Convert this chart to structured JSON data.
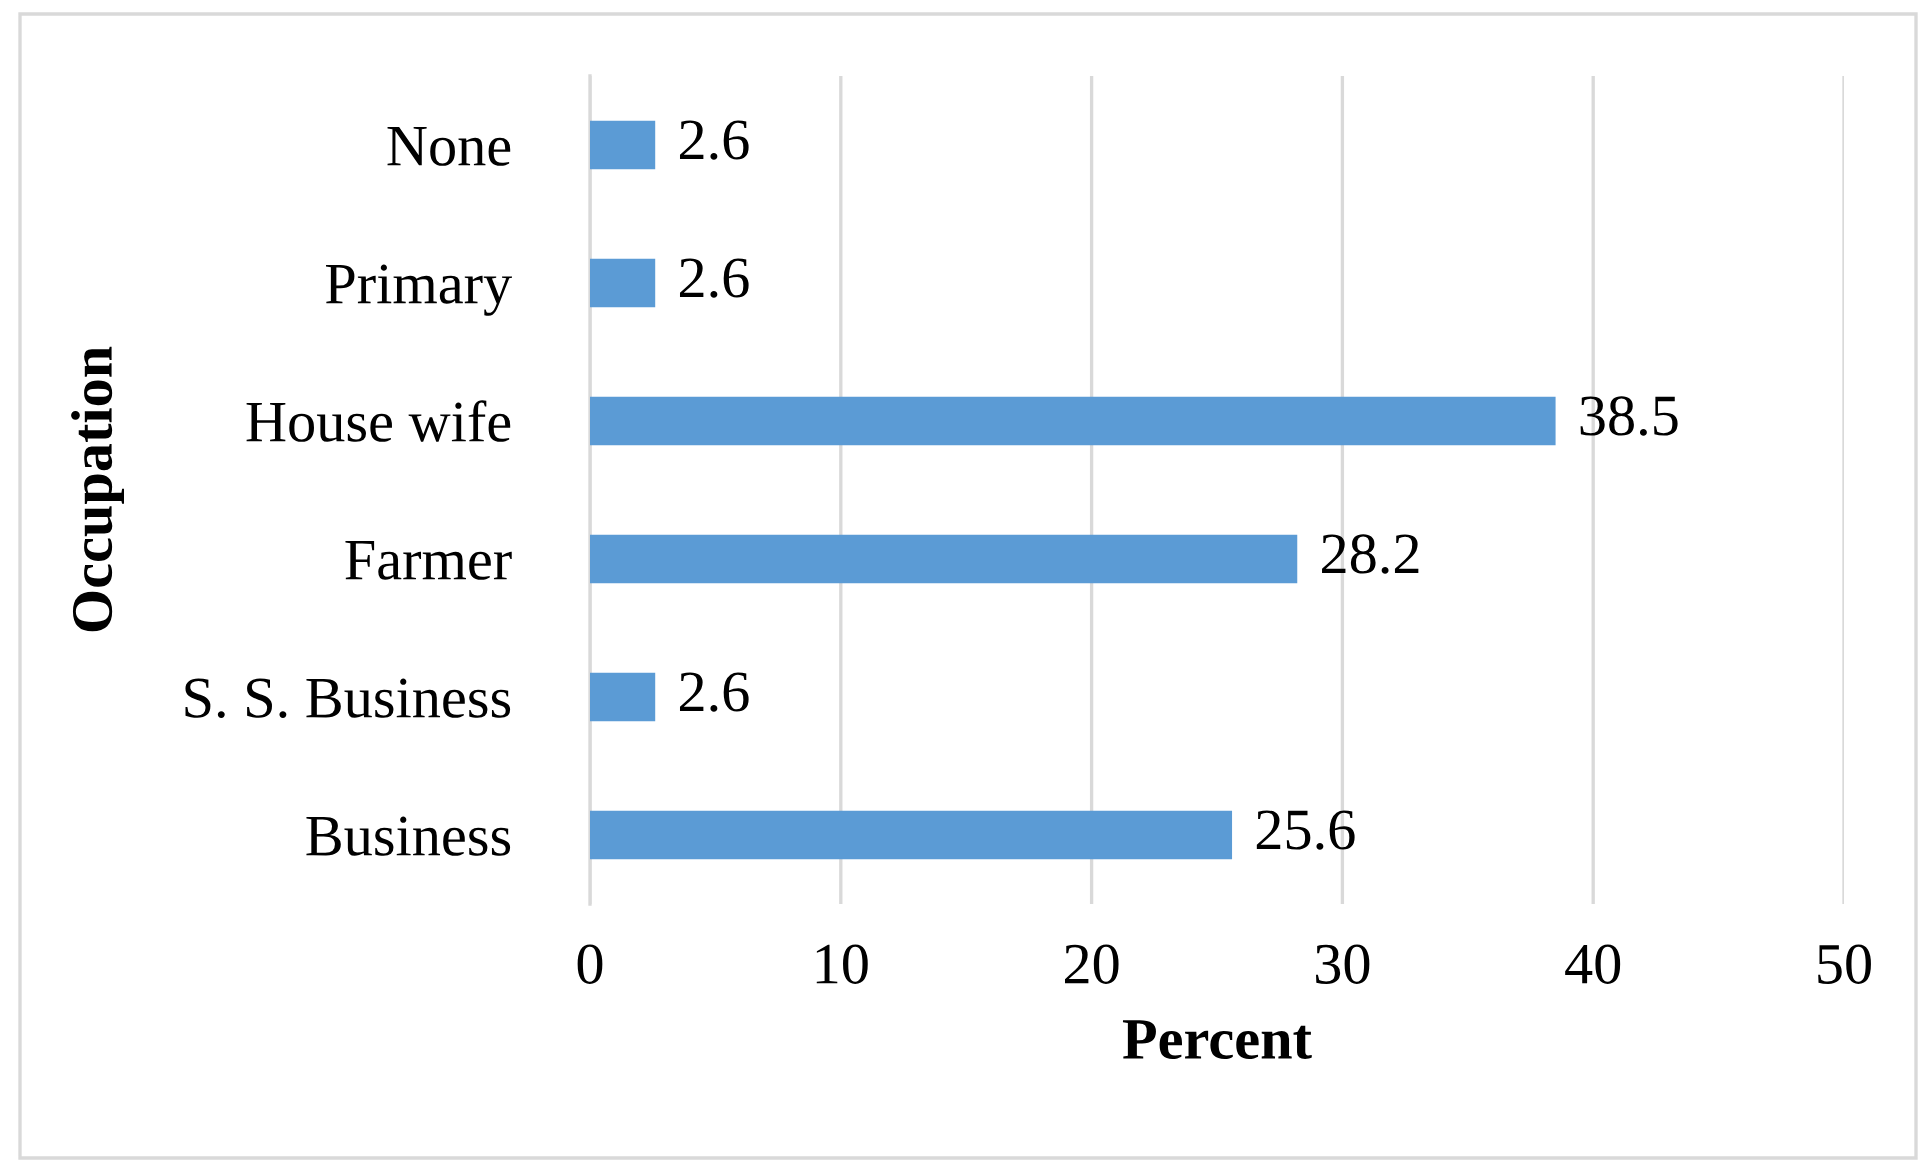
{
  "chart_data": {
    "type": "bar",
    "orientation": "horizontal",
    "xlabel": "Percent",
    "ylabel": "Occupation",
    "categories": [
      "None",
      "Primary",
      "House wife",
      "Farmer",
      "S. S. Business",
      "Business"
    ],
    "values": [
      2.6,
      2.6,
      38.5,
      28.2,
      2.6,
      25.6
    ],
    "color": "#5b9bd5",
    "xlim": [
      0,
      50
    ],
    "xticks": [
      0,
      10,
      20,
      30,
      40,
      50
    ],
    "grid": "x",
    "data_labels": true
  }
}
